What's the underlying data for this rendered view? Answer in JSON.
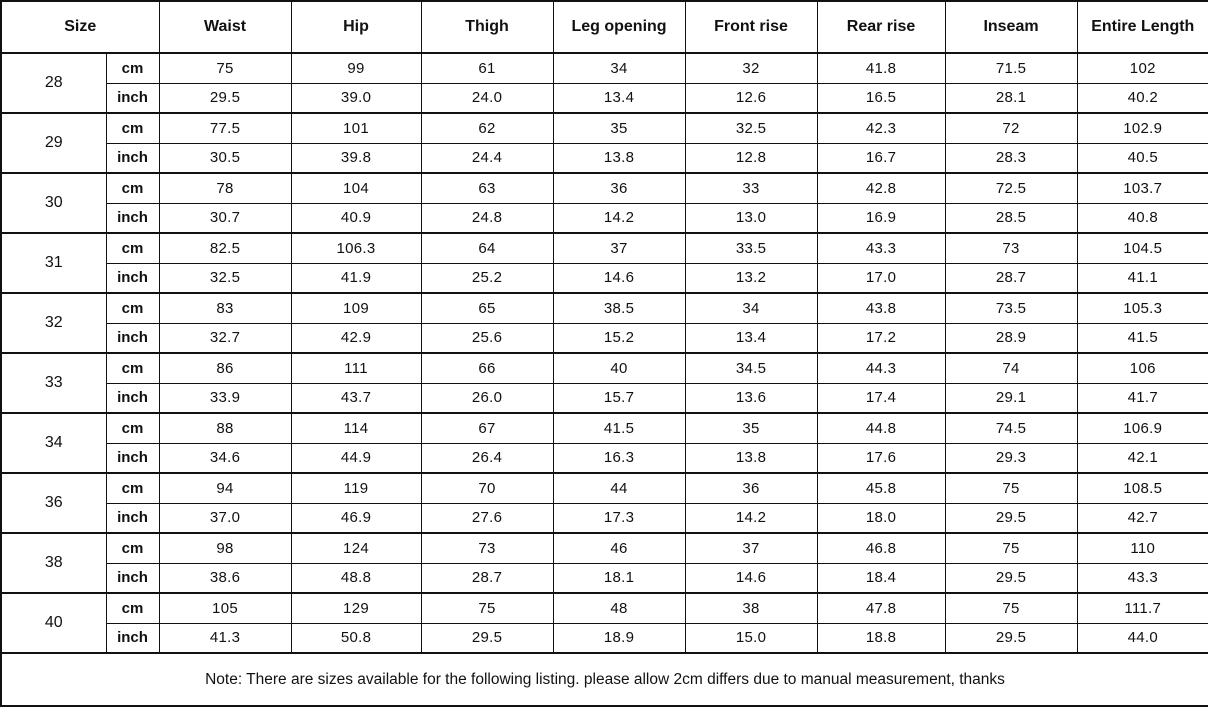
{
  "colors": {
    "background": "#ffffff",
    "border": "#111111",
    "text": "#111111"
  },
  "table": {
    "headers": [
      "Size",
      "Waist",
      "Hip",
      "Thigh",
      "Leg opening",
      "Front rise",
      "Rear rise",
      "Inseam",
      "Entire Length"
    ],
    "unit_labels": [
      "cm",
      "inch"
    ],
    "rows": [
      {
        "size": "28",
        "cm": [
          "75",
          "99",
          "61",
          "34",
          "32",
          "41.8",
          "71.5",
          "102"
        ],
        "inch": [
          "29.5",
          "39.0",
          "24.0",
          "13.4",
          "12.6",
          "16.5",
          "28.1",
          "40.2"
        ]
      },
      {
        "size": "29",
        "cm": [
          "77.5",
          "101",
          "62",
          "35",
          "32.5",
          "42.3",
          "72",
          "102.9"
        ],
        "inch": [
          "30.5",
          "39.8",
          "24.4",
          "13.8",
          "12.8",
          "16.7",
          "28.3",
          "40.5"
        ]
      },
      {
        "size": "30",
        "cm": [
          "78",
          "104",
          "63",
          "36",
          "33",
          "42.8",
          "72.5",
          "103.7"
        ],
        "inch": [
          "30.7",
          "40.9",
          "24.8",
          "14.2",
          "13.0",
          "16.9",
          "28.5",
          "40.8"
        ]
      },
      {
        "size": "31",
        "cm": [
          "82.5",
          "106.3",
          "64",
          "37",
          "33.5",
          "43.3",
          "73",
          "104.5"
        ],
        "inch": [
          "32.5",
          "41.9",
          "25.2",
          "14.6",
          "13.2",
          "17.0",
          "28.7",
          "41.1"
        ]
      },
      {
        "size": "32",
        "cm": [
          "83",
          "109",
          "65",
          "38.5",
          "34",
          "43.8",
          "73.5",
          "105.3"
        ],
        "inch": [
          "32.7",
          "42.9",
          "25.6",
          "15.2",
          "13.4",
          "17.2",
          "28.9",
          "41.5"
        ]
      },
      {
        "size": "33",
        "cm": [
          "86",
          "111",
          "66",
          "40",
          "34.5",
          "44.3",
          "74",
          "106"
        ],
        "inch": [
          "33.9",
          "43.7",
          "26.0",
          "15.7",
          "13.6",
          "17.4",
          "29.1",
          "41.7"
        ]
      },
      {
        "size": "34",
        "cm": [
          "88",
          "114",
          "67",
          "41.5",
          "35",
          "44.8",
          "74.5",
          "106.9"
        ],
        "inch": [
          "34.6",
          "44.9",
          "26.4",
          "16.3",
          "13.8",
          "17.6",
          "29.3",
          "42.1"
        ]
      },
      {
        "size": "36",
        "cm": [
          "94",
          "119",
          "70",
          "44",
          "36",
          "45.8",
          "75",
          "108.5"
        ],
        "inch": [
          "37.0",
          "46.9",
          "27.6",
          "17.3",
          "14.2",
          "18.0",
          "29.5",
          "42.7"
        ]
      },
      {
        "size": "38",
        "cm": [
          "98",
          "124",
          "73",
          "46",
          "37",
          "46.8",
          "75",
          "110"
        ],
        "inch": [
          "38.6",
          "48.8",
          "28.7",
          "18.1",
          "14.6",
          "18.4",
          "29.5",
          "43.3"
        ]
      },
      {
        "size": "40",
        "cm": [
          "105",
          "129",
          "75",
          "48",
          "38",
          "47.8",
          "75",
          "111.7"
        ],
        "inch": [
          "41.3",
          "50.8",
          "29.5",
          "18.9",
          "15.0",
          "18.8",
          "29.5",
          "44.0"
        ]
      }
    ],
    "note": "Note: There are sizes available for the following listing. please allow 2cm differs due to manual measurement, thanks"
  }
}
